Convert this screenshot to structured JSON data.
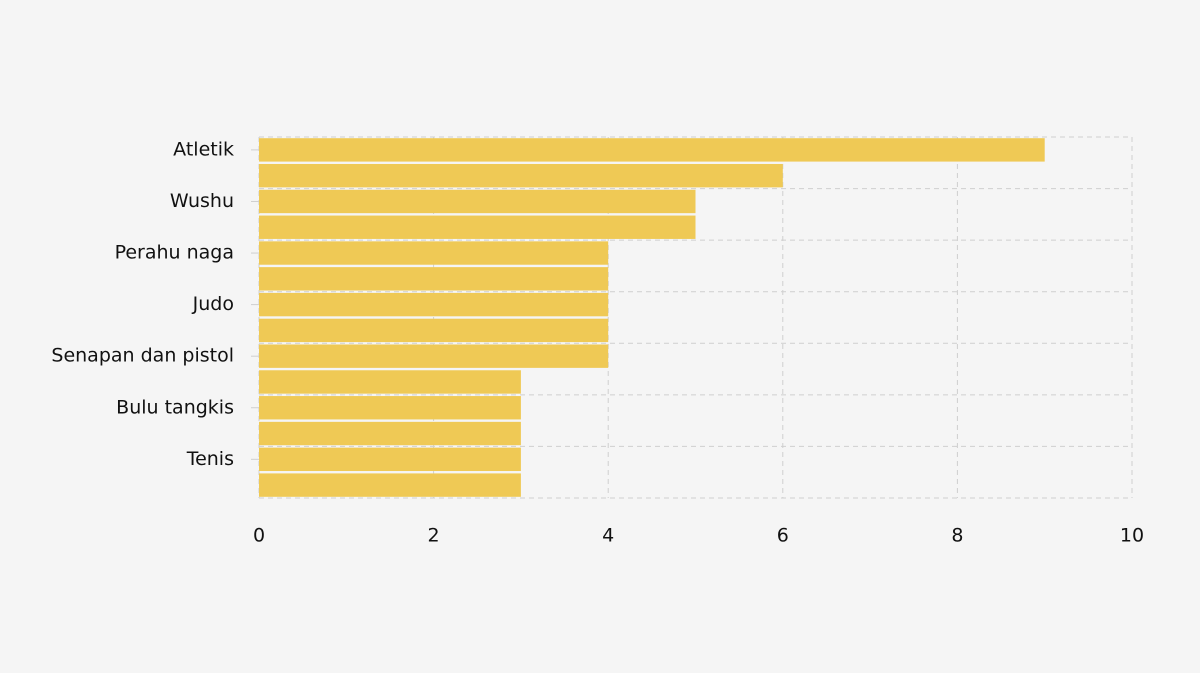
{
  "chart_data": {
    "type": "bar",
    "orientation": "horizontal",
    "categories": [
      "Atletik",
      null,
      "Wushu",
      null,
      "Perahu naga",
      null,
      "Judo",
      null,
      "Senapan dan pistol",
      null,
      "Bulu tangkis",
      null,
      "Tenis",
      null
    ],
    "values": [
      9,
      6,
      5,
      5,
      4,
      4,
      4,
      4,
      4,
      3,
      3,
      3,
      3,
      3
    ],
    "color": "#efc955",
    "xlim": [
      0,
      10
    ],
    "xticks": [
      0,
      2,
      4,
      6,
      8,
      10
    ],
    "grid": true
  }
}
